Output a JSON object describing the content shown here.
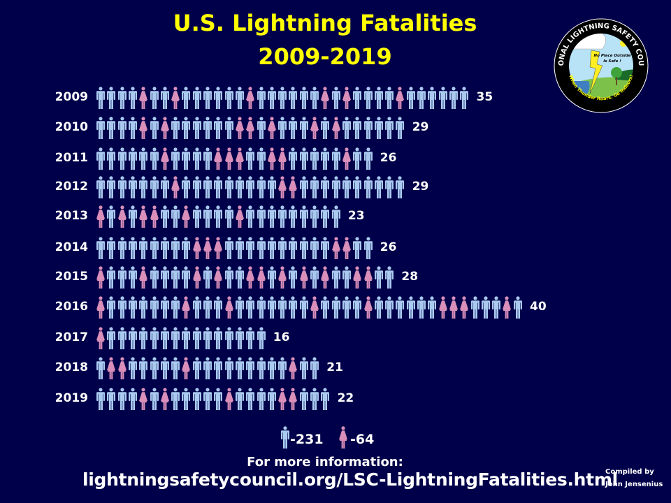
{
  "title_line1": "U.S. Lightning Fatalities",
  "title_line2": "2009-2019",
  "colors": {
    "background": "#00004a",
    "title": "#ffff00",
    "male": "#a9c9ef",
    "female": "#d98fb9"
  },
  "chart_data": {
    "type": "pictogram",
    "title": "U.S. Lightning Fatalities 2009-2019",
    "unit": "one figure = one fatality",
    "rows": [
      {
        "year": "2009",
        "total": "35",
        "female_positions": [
          5,
          8,
          15,
          22,
          24,
          29
        ]
      },
      {
        "year": "2010",
        "total": "29",
        "female_positions": [
          5,
          7,
          14,
          15,
          17,
          21,
          23
        ]
      },
      {
        "year": "2011",
        "total": "26",
        "female_positions": [
          7,
          12,
          13,
          14,
          17,
          18,
          24
        ]
      },
      {
        "year": "2012",
        "total": "29",
        "female_positions": [
          8,
          18,
          19
        ]
      },
      {
        "year": "2013",
        "total": "23",
        "female_positions": [
          1,
          3,
          5,
          6,
          9,
          14
        ]
      },
      {
        "year": "2014",
        "total": "26",
        "female_positions": [
          10,
          11,
          12,
          23,
          24
        ]
      },
      {
        "year": "2015",
        "total": "28",
        "female_positions": [
          1,
          5,
          10,
          12,
          15,
          16,
          18,
          20,
          22,
          25,
          26
        ]
      },
      {
        "year": "2016",
        "total": "40",
        "female_positions": [
          1,
          9,
          13,
          21,
          26,
          33,
          34,
          35,
          39
        ]
      },
      {
        "year": "2017",
        "total": "16",
        "female_positions": [
          1
        ]
      },
      {
        "year": "2018",
        "total": "21",
        "female_positions": [
          2,
          3,
          9,
          19
        ]
      },
      {
        "year": "2019",
        "total": "22",
        "female_positions": [
          5,
          7,
          13,
          18,
          19
        ]
      }
    ],
    "legend": {
      "male": "-231",
      "female": "-64"
    }
  },
  "footer": {
    "more_info": "For more information:",
    "url": "lightningsafetycouncil.org/LSC-LightningFatalities.html",
    "compiled_by": "Compiled by",
    "author": "John Jensenius"
  },
  "logo": {
    "top_text": "NATIONAL LIGHTNING SAFETY COUNCIL",
    "inner_text_1": "No Place Outside",
    "inner_text_2": "Is Safe !",
    "bottom_text": "When Thunder Roars, Go Indoors!"
  }
}
